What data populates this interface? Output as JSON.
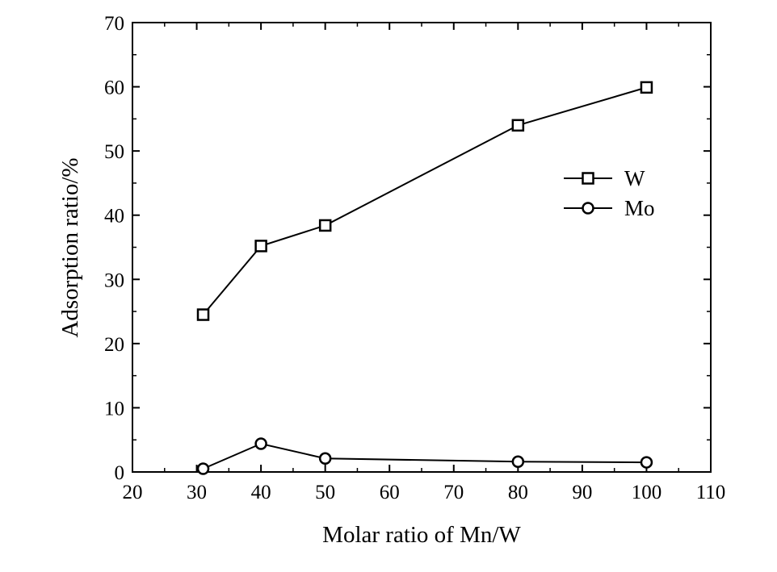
{
  "chart_data": {
    "type": "line",
    "xlabel": "Molar ratio of Mn/W",
    "ylabel": "Adsorption ratio/%",
    "xlim": [
      20,
      110
    ],
    "ylim": [
      0,
      70
    ],
    "xticks": [
      "20",
      "30",
      "40",
      "50",
      "60",
      "70",
      "80",
      "90",
      "100",
      "110"
    ],
    "yticks": [
      "0",
      "10",
      "20",
      "30",
      "40",
      "50",
      "60",
      "70"
    ],
    "grid": false,
    "legend_position": "right-middle",
    "series": [
      {
        "name": "W",
        "marker": "square",
        "color": "#000000",
        "x": [
          31,
          40,
          50,
          80,
          100
        ],
        "y": [
          24.5,
          35.2,
          38.4,
          54.0,
          59.9
        ]
      },
      {
        "name": "Mo",
        "marker": "circle",
        "color": "#000000",
        "x": [
          31,
          40,
          50,
          80,
          100
        ],
        "y": [
          0.5,
          4.4,
          2.1,
          1.6,
          1.5
        ]
      }
    ]
  }
}
